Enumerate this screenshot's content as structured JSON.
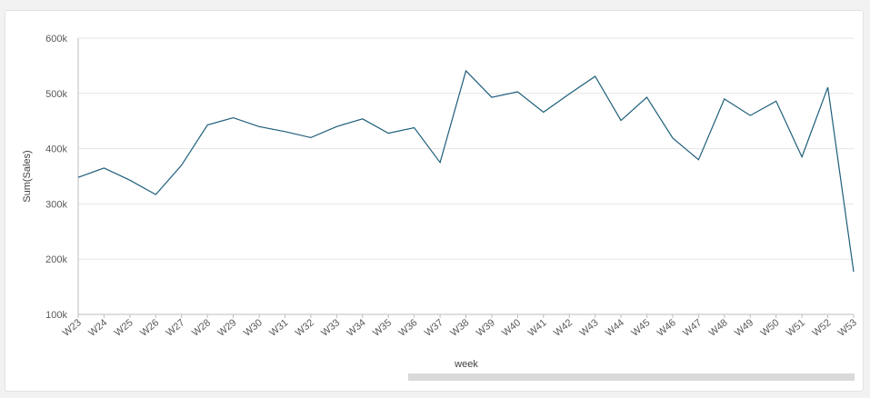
{
  "chart_data": {
    "type": "line",
    "title": "",
    "xlabel": "week",
    "ylabel": "Sum(Sales)",
    "ylim": [
      100000,
      600000
    ],
    "yticks": [
      {
        "value": 100000,
        "label": "100k"
      },
      {
        "value": 200000,
        "label": "200k"
      },
      {
        "value": 300000,
        "label": "300k"
      },
      {
        "value": 400000,
        "label": "400k"
      },
      {
        "value": 500000,
        "label": "500k"
      },
      {
        "value": 600000,
        "label": "600k"
      }
    ],
    "categories": [
      "W23",
      "W24",
      "W25",
      "W26",
      "W27",
      "W28",
      "W29",
      "W30",
      "W31",
      "W32",
      "W33",
      "W34",
      "W35",
      "W36",
      "W37",
      "W38",
      "W39",
      "W40",
      "W41",
      "W42",
      "W43",
      "W44",
      "W45",
      "W46",
      "W47",
      "W48",
      "W49",
      "W50",
      "W51",
      "W52",
      "W53"
    ],
    "series": [
      {
        "values": [
          348000,
          365000,
          343000,
          317000,
          370000,
          443000,
          456000,
          440000,
          431000,
          420000,
          440000,
          454000,
          428000,
          438000,
          375000,
          541000,
          493000,
          503000,
          466000,
          499000,
          531000,
          451000,
          493000,
          419000,
          380000,
          490000,
          460000,
          486000,
          385000,
          511000,
          177000
        ],
        "color": "#1d5e7a"
      }
    ],
    "grid": true,
    "legend": "none",
    "scrollbar": true
  }
}
